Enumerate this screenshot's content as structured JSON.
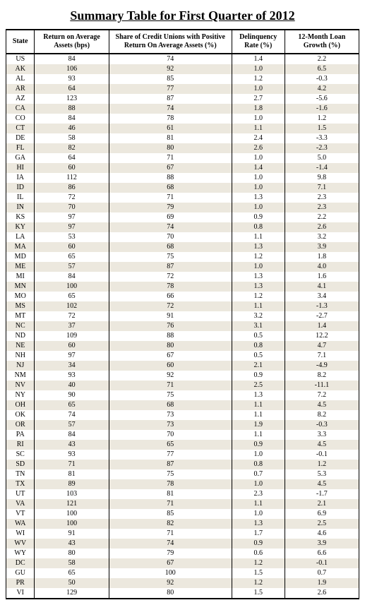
{
  "title": "Summary Table for First Quarter of 2012",
  "table": {
    "columns": [
      "State",
      "Return on Average Assets (bps)",
      "Share of Credit Unions with Positive Return On Average Assets (%)",
      "Delinquency Rate (%)",
      "12-Month Loan Growth (%)"
    ],
    "stripe_color": "#ece8de",
    "rows": [
      [
        "US",
        "84",
        "74",
        "1.4",
        "2.2"
      ],
      [
        "AK",
        "106",
        "92",
        "1.0",
        "6.5"
      ],
      [
        "AL",
        "93",
        "85",
        "1.2",
        "-0.3"
      ],
      [
        "AR",
        "64",
        "77",
        "1.0",
        "4.2"
      ],
      [
        "AZ",
        "123",
        "87",
        "2.7",
        "-5.6"
      ],
      [
        "CA",
        "88",
        "74",
        "1.8",
        "-1.6"
      ],
      [
        "CO",
        "84",
        "78",
        "1.0",
        "1.2"
      ],
      [
        "CT",
        "46",
        "61",
        "1.1",
        "1.5"
      ],
      [
        "DE",
        "58",
        "81",
        "2.4",
        "-3.3"
      ],
      [
        "FL",
        "82",
        "80",
        "2.6",
        "-2.3"
      ],
      [
        "GA",
        "64",
        "71",
        "1.0",
        "5.0"
      ],
      [
        "HI",
        "60",
        "67",
        "1.4",
        "-1.4"
      ],
      [
        "IA",
        "112",
        "88",
        "1.0",
        "9.8"
      ],
      [
        "ID",
        "86",
        "68",
        "1.0",
        "7.1"
      ],
      [
        "IL",
        "72",
        "71",
        "1.3",
        "2.3"
      ],
      [
        "IN",
        "70",
        "79",
        "1.0",
        "2.3"
      ],
      [
        "KS",
        "97",
        "69",
        "0.9",
        "2.2"
      ],
      [
        "KY",
        "97",
        "74",
        "0.8",
        "2.6"
      ],
      [
        "LA",
        "53",
        "70",
        "1.1",
        "3.2"
      ],
      [
        "MA",
        "60",
        "68",
        "1.3",
        "3.9"
      ],
      [
        "MD",
        "65",
        "75",
        "1.2",
        "1.8"
      ],
      [
        "ME",
        "57",
        "87",
        "1.0",
        "4.0"
      ],
      [
        "MI",
        "84",
        "72",
        "1.3",
        "1.6"
      ],
      [
        "MN",
        "100",
        "78",
        "1.3",
        "4.1"
      ],
      [
        "MO",
        "65",
        "66",
        "1.2",
        "3.4"
      ],
      [
        "MS",
        "102",
        "72",
        "1.1",
        "-1.3"
      ],
      [
        "MT",
        "72",
        "91",
        "3.2",
        "-2.7"
      ],
      [
        "NC",
        "37",
        "76",
        "3.1",
        "1.4"
      ],
      [
        "ND",
        "109",
        "88",
        "0.5",
        "12.2"
      ],
      [
        "NE",
        "60",
        "80",
        "0.8",
        "4.7"
      ],
      [
        "NH",
        "97",
        "67",
        "0.5",
        "7.1"
      ],
      [
        "NJ",
        "34",
        "60",
        "2.1",
        "-4.9"
      ],
      [
        "NM",
        "93",
        "92",
        "0.9",
        "8.2"
      ],
      [
        "NV",
        "40",
        "71",
        "2.5",
        "-11.1"
      ],
      [
        "NY",
        "90",
        "75",
        "1.3",
        "7.2"
      ],
      [
        "OH",
        "65",
        "68",
        "1.1",
        "4.5"
      ],
      [
        "OK",
        "74",
        "73",
        "1.1",
        "8.2"
      ],
      [
        "OR",
        "57",
        "73",
        "1.9",
        "-0.3"
      ],
      [
        "PA",
        "84",
        "70",
        "1.1",
        "3.3"
      ],
      [
        "RI",
        "43",
        "65",
        "0.9",
        "4.5"
      ],
      [
        "SC",
        "93",
        "77",
        "1.0",
        "-0.1"
      ],
      [
        "SD",
        "71",
        "87",
        "0.8",
        "1.2"
      ],
      [
        "TN",
        "81",
        "75",
        "0.7",
        "5.3"
      ],
      [
        "TX",
        "89",
        "78",
        "1.0",
        "4.5"
      ],
      [
        "UT",
        "103",
        "81",
        "2.3",
        "-1.7"
      ],
      [
        "VA",
        "121",
        "71",
        "1.1",
        "2.1"
      ],
      [
        "VT",
        "100",
        "85",
        "1.0",
        "6.9"
      ],
      [
        "WA",
        "100",
        "82",
        "1.3",
        "2.5"
      ],
      [
        "WI",
        "91",
        "71",
        "1.7",
        "4.6"
      ],
      [
        "WV",
        "43",
        "74",
        "0.9",
        "3.9"
      ],
      [
        "WY",
        "80",
        "79",
        "0.6",
        "6.6"
      ],
      [
        "DC",
        "58",
        "67",
        "1.2",
        "-0.1"
      ],
      [
        "GU",
        "65",
        "100",
        "1.5",
        "0.7"
      ],
      [
        "PR",
        "50",
        "92",
        "1.2",
        "1.9"
      ],
      [
        "VI",
        "129",
        "80",
        "1.5",
        "2.6"
      ]
    ]
  }
}
